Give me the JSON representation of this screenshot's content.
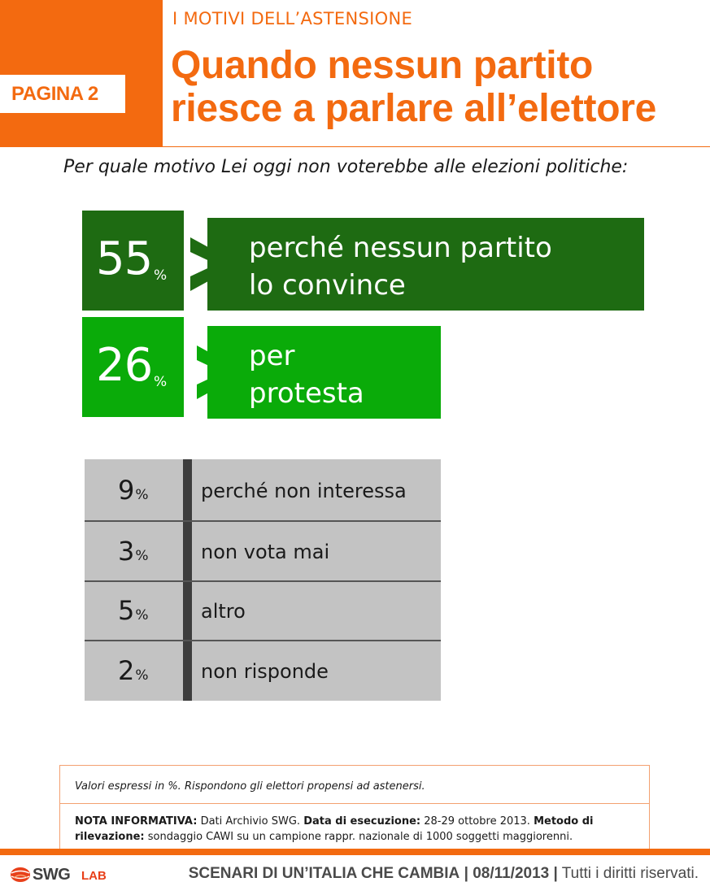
{
  "header": {
    "page_label": "PAGINA 2",
    "kicker": "I MOTIVI DELL’ASTENSIONE",
    "title_line1": "Quando nessun partito",
    "title_line2": "riesce a parlare all’elettore"
  },
  "question": "Per quale motivo Lei oggi non voterebbe alle elezioni politiche:",
  "percent_symbol": "%",
  "chart_data": {
    "type": "table",
    "title": "Per quale motivo Lei oggi non voterebbe alle elezioni politiche:",
    "unit": "%",
    "highlighted": [
      {
        "value": 55,
        "value_text": "55",
        "label_line1": "perché nessun partito",
        "label_line2": "lo convince",
        "color": "#1e6b12"
      },
      {
        "value": 26,
        "value_text": "26",
        "label_line1": "per",
        "label_line2": "protesta",
        "color": "#0aab09"
      }
    ],
    "rows": [
      {
        "value": 9,
        "value_text": "9",
        "label": "perché non interessa"
      },
      {
        "value": 3,
        "value_text": "3",
        "label": "non vota mai"
      },
      {
        "value": 5,
        "value_text": "5",
        "label": "altro"
      },
      {
        "value": 2,
        "value_text": "2",
        "label": "non risponde"
      }
    ]
  },
  "note": {
    "line1": "Valori espressi in %. Rispondono gli elettori propensi ad astenersi.",
    "nota_label": "NOTA INFORMATIVA:",
    "nota_text": "Dati Archivio SWG.",
    "data_label": "Data di esecuzione:",
    "data_text": "28-29 ottobre 2013.",
    "metodo_label": "Metodo di rilevazione:",
    "metodo_text": "sondaggio CAWI su un campione rappr. nazionale di 1000 soggetti maggiorenni."
  },
  "footer": {
    "logo_main": "SWG",
    "logo_sub": "LAB",
    "series": "SCENARI DI UN’ITALIA CHE CAMBIA",
    "sep1": "|",
    "date": "08/11/2013",
    "sep2": "|",
    "rights": "Tutti i diritti riservati."
  },
  "colors": {
    "accent": "#f36a10",
    "dark_green": "#1e6b12",
    "bright_green": "#0aab09",
    "table_gray": "#c3c3c3",
    "table_separator": "#3d3d3d"
  }
}
